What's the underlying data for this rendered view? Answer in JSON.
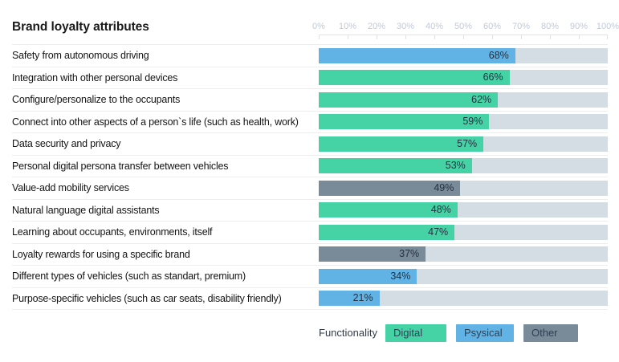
{
  "title": "Brand loyalty attributes",
  "colors": {
    "digital": "#45d3a6",
    "psysical": "#62b3e5",
    "other": "#798a99",
    "track": "#d4dce4"
  },
  "legend": {
    "label": "Functionality",
    "items": [
      {
        "label": "Digital",
        "category": "digital"
      },
      {
        "label": "Psysical",
        "category": "psysical"
      },
      {
        "label": "Other",
        "category": "other"
      }
    ]
  },
  "chart_data": {
    "type": "bar",
    "orientation": "horizontal",
    "title": "Brand loyalty attributes",
    "xlabel": "",
    "ylabel": "",
    "xlim": [
      0,
      100
    ],
    "grid": false,
    "legend_position": "bottom",
    "x_ticks": [
      0,
      10,
      20,
      30,
      40,
      50,
      60,
      70,
      80,
      90,
      100
    ],
    "x_tick_labels": [
      "0%",
      "10%",
      "20%",
      "30%",
      "40%",
      "50%",
      "60%",
      "70%",
      "80%",
      "90%",
      "100%"
    ],
    "categories": [
      "Safety from autonomous driving",
      "Integration with other personal devices",
      "Configure/personalize to the occupants",
      "Connect into other aspects of a person`s life (such as health, work)",
      "Data security and privacy",
      "Personal digital persona transfer between vehicles",
      "Value-add mobility services",
      "Natural language digital assistants",
      "Learning about occupants, environments, itself",
      "Loyalty rewards for using a specific brand",
      "Different types of vehicles (such as standart, premium)",
      "Purpose-specific vehicles (such as car seats, disability friendly)"
    ],
    "values": [
      68,
      66,
      62,
      59,
      57,
      53,
      49,
      48,
      47,
      37,
      34,
      21
    ],
    "value_labels": [
      "68%",
      "66%",
      "62%",
      "59%",
      "57%",
      "53%",
      "49%",
      "48%",
      "47%",
      "37%",
      "34%",
      "21%"
    ],
    "series_category": [
      "psysical",
      "digital",
      "digital",
      "digital",
      "digital",
      "digital",
      "other",
      "digital",
      "digital",
      "other",
      "psysical",
      "psysical"
    ]
  }
}
